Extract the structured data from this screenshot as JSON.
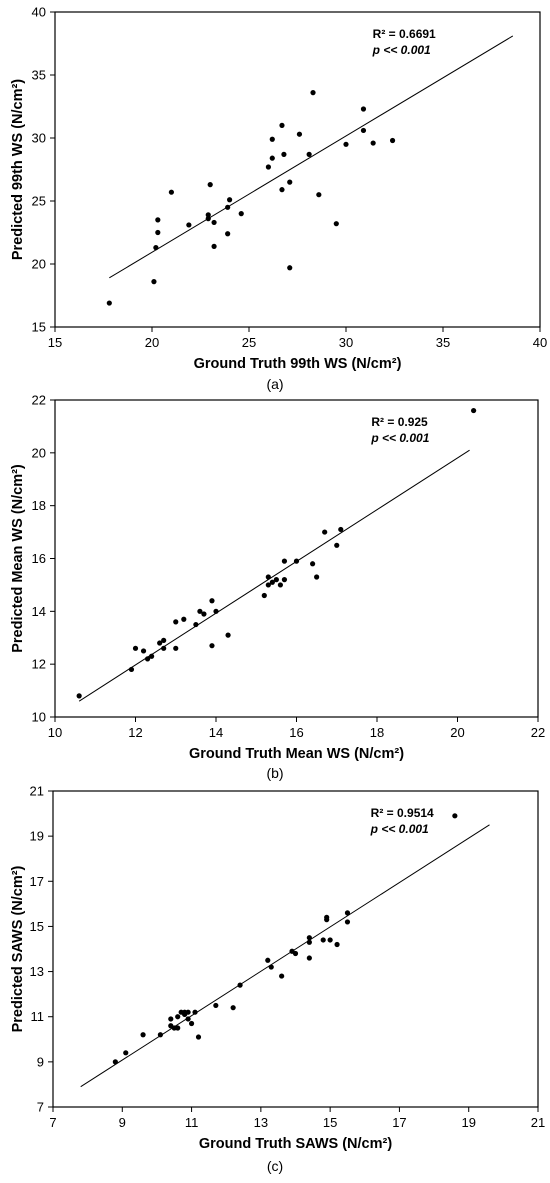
{
  "chart_data": [
    {
      "type": "scatter",
      "panel_label": "(a)",
      "xlabel": "Ground Truth 99th WS (N/cm²)",
      "ylabel": "Predicted 99th WS (N/cm²)",
      "xlim": [
        15,
        40
      ],
      "ylim": [
        15,
        40
      ],
      "xticks": [
        "15",
        "20",
        "25",
        "30",
        "35",
        "40"
      ],
      "yticks": [
        "15",
        "20",
        "25",
        "30",
        "35",
        "40"
      ],
      "annotations": {
        "r2": "R² = 0.6691",
        "p": "p << 0.001"
      },
      "annotation_position": "top-right",
      "trendline": {
        "x": [
          17.8,
          38.6
        ],
        "y": [
          18.9,
          38.1
        ]
      },
      "grid": false,
      "points": [
        {
          "x": 17.8,
          "y": 16.9
        },
        {
          "x": 20.1,
          "y": 18.6
        },
        {
          "x": 20.2,
          "y": 21.3
        },
        {
          "x": 20.3,
          "y": 22.5
        },
        {
          "x": 20.3,
          "y": 23.5
        },
        {
          "x": 21.0,
          "y": 25.7
        },
        {
          "x": 21.9,
          "y": 23.1
        },
        {
          "x": 22.9,
          "y": 23.6
        },
        {
          "x": 22.9,
          "y": 23.9
        },
        {
          "x": 23.0,
          "y": 26.3
        },
        {
          "x": 23.2,
          "y": 23.3
        },
        {
          "x": 23.2,
          "y": 21.4
        },
        {
          "x": 23.9,
          "y": 22.4
        },
        {
          "x": 23.9,
          "y": 24.5
        },
        {
          "x": 24.0,
          "y": 25.1
        },
        {
          "x": 24.6,
          "y": 24.0
        },
        {
          "x": 26.0,
          "y": 27.7
        },
        {
          "x": 26.2,
          "y": 29.9
        },
        {
          "x": 26.2,
          "y": 28.4
        },
        {
          "x": 26.7,
          "y": 25.9
        },
        {
          "x": 26.7,
          "y": 31.0
        },
        {
          "x": 26.8,
          "y": 28.7
        },
        {
          "x": 27.1,
          "y": 26.5
        },
        {
          "x": 27.1,
          "y": 19.7
        },
        {
          "x": 27.6,
          "y": 30.3
        },
        {
          "x": 28.1,
          "y": 28.7
        },
        {
          "x": 28.3,
          "y": 33.6
        },
        {
          "x": 28.6,
          "y": 25.5
        },
        {
          "x": 29.5,
          "y": 23.2
        },
        {
          "x": 30.0,
          "y": 29.5
        },
        {
          "x": 30.9,
          "y": 32.3
        },
        {
          "x": 30.9,
          "y": 30.6
        },
        {
          "x": 31.4,
          "y": 29.6
        },
        {
          "x": 32.4,
          "y": 29.8
        }
      ]
    },
    {
      "type": "scatter",
      "panel_label": "(b)",
      "xlabel": "Ground Truth Mean WS (N/cm²)",
      "ylabel": "Predicted Mean WS (N/cm²)",
      "xlim": [
        10,
        22
      ],
      "ylim": [
        10,
        22
      ],
      "xticks": [
        "10",
        "12",
        "14",
        "16",
        "18",
        "20",
        "22"
      ],
      "yticks": [
        "10",
        "12",
        "14",
        "16",
        "18",
        "20",
        "22"
      ],
      "annotations": {
        "r2": "R² = 0.925",
        "p": "p << 0.001"
      },
      "annotation_position": "top-right",
      "trendline": {
        "x": [
          10.6,
          20.3
        ],
        "y": [
          10.6,
          20.1
        ]
      },
      "grid": false,
      "points": [
        {
          "x": 10.6,
          "y": 10.8
        },
        {
          "x": 11.9,
          "y": 11.8
        },
        {
          "x": 12.0,
          "y": 12.6
        },
        {
          "x": 12.2,
          "y": 12.5
        },
        {
          "x": 12.3,
          "y": 12.2
        },
        {
          "x": 12.4,
          "y": 12.3
        },
        {
          "x": 12.6,
          "y": 12.8
        },
        {
          "x": 12.7,
          "y": 12.6
        },
        {
          "x": 12.7,
          "y": 12.9
        },
        {
          "x": 13.0,
          "y": 12.6
        },
        {
          "x": 13.0,
          "y": 13.6
        },
        {
          "x": 13.2,
          "y": 13.7
        },
        {
          "x": 13.5,
          "y": 13.5
        },
        {
          "x": 13.6,
          "y": 14.0
        },
        {
          "x": 13.7,
          "y": 13.9
        },
        {
          "x": 13.9,
          "y": 14.4
        },
        {
          "x": 13.9,
          "y": 12.7
        },
        {
          "x": 14.0,
          "y": 14.0
        },
        {
          "x": 14.3,
          "y": 13.1
        },
        {
          "x": 15.2,
          "y": 14.6
        },
        {
          "x": 15.3,
          "y": 15.0
        },
        {
          "x": 15.3,
          "y": 15.3
        },
        {
          "x": 15.4,
          "y": 15.1
        },
        {
          "x": 15.5,
          "y": 15.2
        },
        {
          "x": 15.6,
          "y": 15.0
        },
        {
          "x": 15.7,
          "y": 15.2
        },
        {
          "x": 15.7,
          "y": 15.9
        },
        {
          "x": 16.0,
          "y": 15.9
        },
        {
          "x": 16.4,
          "y": 15.8
        },
        {
          "x": 16.5,
          "y": 15.3
        },
        {
          "x": 16.7,
          "y": 17.0
        },
        {
          "x": 17.0,
          "y": 16.5
        },
        {
          "x": 17.1,
          "y": 17.1
        },
        {
          "x": 20.4,
          "y": 21.6
        }
      ]
    },
    {
      "type": "scatter",
      "panel_label": "(c)",
      "xlabel": "Ground Truth SAWS (N/cm²)",
      "ylabel": "Predicted SAWS (N/cm²)",
      "xlim": [
        7,
        21
      ],
      "ylim": [
        7,
        21
      ],
      "xticks": [
        "7",
        "9",
        "11",
        "13",
        "15",
        "17",
        "19",
        "21"
      ],
      "yticks": [
        "7",
        "9",
        "11",
        "13",
        "15",
        "17",
        "19",
        "21"
      ],
      "annotations": {
        "r2": "R² = 0.9514",
        "p": "p << 0.001"
      },
      "annotation_position": "top-right",
      "trendline": {
        "x": [
          7.8,
          19.6
        ],
        "y": [
          7.9,
          19.5
        ]
      },
      "grid": false,
      "points": [
        {
          "x": 8.8,
          "y": 9.0
        },
        {
          "x": 9.1,
          "y": 9.4
        },
        {
          "x": 9.6,
          "y": 10.2
        },
        {
          "x": 10.1,
          "y": 10.2
        },
        {
          "x": 10.4,
          "y": 10.6
        },
        {
          "x": 10.4,
          "y": 10.9
        },
        {
          "x": 10.5,
          "y": 10.5
        },
        {
          "x": 10.6,
          "y": 10.5
        },
        {
          "x": 10.6,
          "y": 11.0
        },
        {
          "x": 10.7,
          "y": 11.2
        },
        {
          "x": 10.8,
          "y": 11.1
        },
        {
          "x": 10.8,
          "y": 11.2
        },
        {
          "x": 10.9,
          "y": 11.2
        },
        {
          "x": 10.9,
          "y": 10.9
        },
        {
          "x": 11.0,
          "y": 10.7
        },
        {
          "x": 11.1,
          "y": 11.2
        },
        {
          "x": 11.2,
          "y": 10.1
        },
        {
          "x": 11.7,
          "y": 11.5
        },
        {
          "x": 12.2,
          "y": 11.4
        },
        {
          "x": 12.4,
          "y": 12.4
        },
        {
          "x": 13.2,
          "y": 13.5
        },
        {
          "x": 13.3,
          "y": 13.2
        },
        {
          "x": 13.6,
          "y": 12.8
        },
        {
          "x": 13.9,
          "y": 13.9
        },
        {
          "x": 14.0,
          "y": 13.8
        },
        {
          "x": 14.4,
          "y": 13.6
        },
        {
          "x": 14.4,
          "y": 14.3
        },
        {
          "x": 14.4,
          "y": 14.5
        },
        {
          "x": 14.8,
          "y": 14.4
        },
        {
          "x": 14.9,
          "y": 15.3
        },
        {
          "x": 14.9,
          "y": 15.4
        },
        {
          "x": 15.0,
          "y": 14.4
        },
        {
          "x": 15.2,
          "y": 14.2
        },
        {
          "x": 15.5,
          "y": 15.6
        },
        {
          "x": 15.5,
          "y": 15.2
        },
        {
          "x": 18.6,
          "y": 19.9
        }
      ]
    }
  ]
}
